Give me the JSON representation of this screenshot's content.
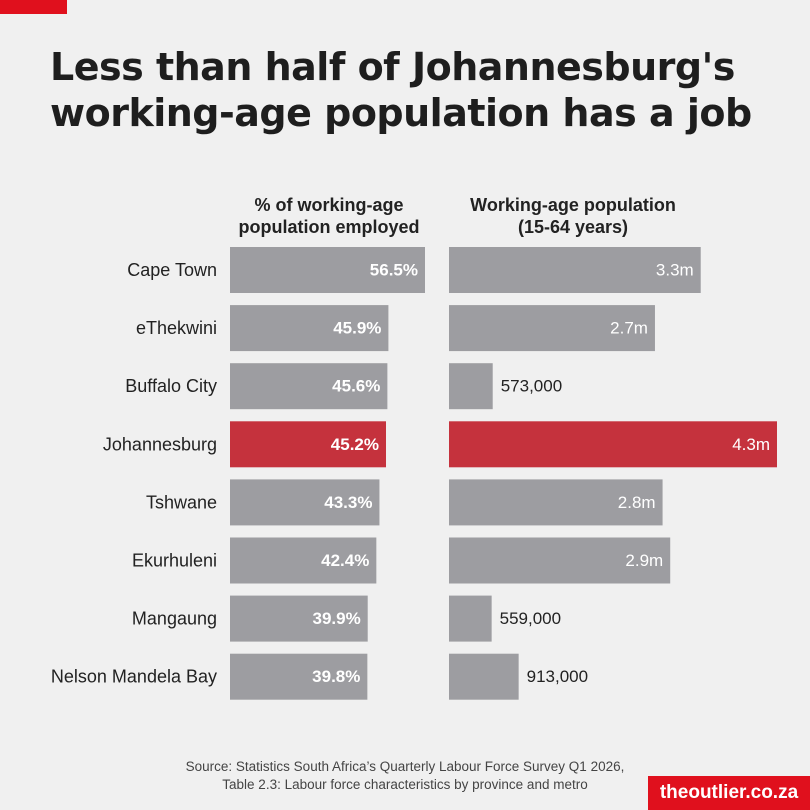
{
  "title_lines": [
    "Less than half of Johannesburg's",
    "working-age population has a job"
  ],
  "columns": {
    "left_header": [
      "% of working-age",
      "population employed"
    ],
    "right_header": [
      "Working-age population",
      "(15-64 years)"
    ]
  },
  "source_lines": [
    "Source: Statistics South Africa’s Quarterly Labour Force Survey Q1 2026,",
    "Table 2.3: Labour force characteristics by province and metro"
  ],
  "brand": "theoutlier.co.za",
  "colors": {
    "bar": "#9d9da1",
    "highlight": "#c5323d",
    "brand": "#e0101d",
    "background": "#f0f0f0"
  },
  "chart_data": [
    {
      "type": "bar",
      "orientation": "horizontal",
      "title": "% of working-age population employed",
      "categories": [
        "Cape Town",
        "eThekwini",
        "Buffalo City",
        "Johannesburg",
        "Tshwane",
        "Ekurhuleni",
        "Mangaung",
        "Nelson Mandela Bay"
      ],
      "values": [
        56.5,
        45.9,
        45.6,
        45.2,
        43.3,
        42.4,
        39.9,
        39.8
      ],
      "labels": [
        "56.5%",
        "45.9%",
        "45.6%",
        "45.2%",
        "43.3%",
        "42.4%",
        "39.9%",
        "39.8%"
      ],
      "highlight": "Johannesburg",
      "xlim": [
        0,
        56.5
      ]
    },
    {
      "type": "bar",
      "orientation": "horizontal",
      "title": "Working-age population (15-64 years)",
      "categories": [
        "Cape Town",
        "eThekwini",
        "Buffalo City",
        "Johannesburg",
        "Tshwane",
        "Ekurhuleni",
        "Mangaung",
        "Nelson Mandela Bay"
      ],
      "values": [
        3300000,
        2700000,
        573000,
        4300000,
        2800000,
        2900000,
        559000,
        913000
      ],
      "labels": [
        "3.3m",
        "2.7m",
        "573,000",
        "4.3m",
        "2.8m",
        "2.9m",
        "559,000",
        "913,000"
      ],
      "highlight": "Johannesburg",
      "xlim": [
        0,
        4300000
      ]
    }
  ]
}
